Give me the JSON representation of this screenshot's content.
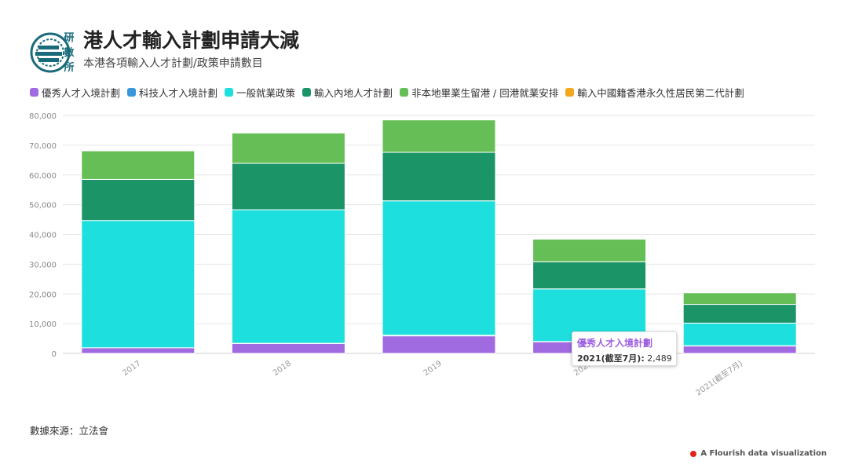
{
  "header": {
    "title": "港人才輸入計劃申請大減",
    "subtitle": "本港各項輸入人才計劃/政策申請數目",
    "logo_text": "研數所"
  },
  "legend": [
    {
      "label": "優秀人才入境計劃",
      "color": "#a06ae0"
    },
    {
      "label": "科技人才入境計劃",
      "color": "#3b97dc"
    },
    {
      "label": "一般就業政策",
      "color": "#1de0de"
    },
    {
      "label": "輸入內地人才計劃",
      "color": "#1b9467"
    },
    {
      "label": "非本地畢業生留港 / 回港就業安排",
      "color": "#66bf56"
    },
    {
      "label": "輸入中國籍香港永久性居民第二代計劃",
      "color": "#f2a81d"
    }
  ],
  "chart_data": {
    "type": "bar",
    "stacked": true,
    "categories": [
      "2017",
      "2018",
      "2019",
      "2020",
      "2021(截至7月)"
    ],
    "series": [
      {
        "name": "優秀人才入境計劃",
        "color": "#a06ae0",
        "values": [
          1900,
          3300,
          5900,
          3900,
          2489
        ]
      },
      {
        "name": "科技人才入境計劃",
        "color": "#3b97dc",
        "values": [
          0,
          100,
          200,
          100,
          100
        ]
      },
      {
        "name": "一般就業政策",
        "color": "#1de0de",
        "values": [
          42800,
          44900,
          45200,
          17700,
          7600
        ]
      },
      {
        "name": "輸入內地人才計劃",
        "color": "#1b9467",
        "values": [
          13800,
          15600,
          16300,
          9100,
          6300
        ]
      },
      {
        "name": "非本地畢業生留港 / 回港就業安排",
        "color": "#66bf56",
        "values": [
          9600,
          10200,
          10900,
          7600,
          3900
        ]
      },
      {
        "name": "輸入中國籍香港永久性居民第二代計劃",
        "color": "#f2a81d",
        "values": [
          0,
          0,
          0,
          0,
          0
        ]
      }
    ],
    "ylim": [
      0,
      80000
    ],
    "yticks": [
      0,
      10000,
      20000,
      30000,
      40000,
      50000,
      60000,
      70000,
      80000
    ],
    "ytick_labels": [
      "0",
      "10,000",
      "20,000",
      "30,000",
      "40,000",
      "50,000",
      "60,000",
      "70,000",
      "80,000"
    ],
    "grid": true,
    "legend_position": "top",
    "xlabel": "",
    "ylabel": ""
  },
  "tooltip": {
    "series": "優秀人才入境計劃",
    "category": "2021(截至7月):",
    "value": "2,489"
  },
  "footer": {
    "source": "數據來源：立法會",
    "credit": "A Flourish data visualization"
  }
}
